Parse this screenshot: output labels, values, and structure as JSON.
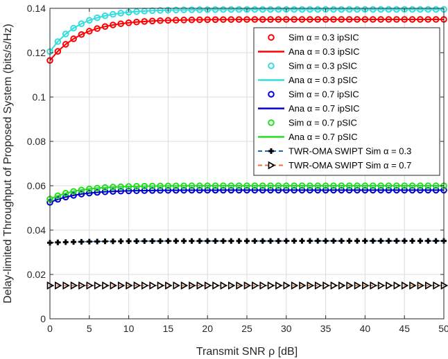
{
  "chart_data": {
    "type": "line",
    "xlabel": "Transmit SNR ρ [dB]",
    "ylabel": "Delay-limited Throughput of Proposed System (bits/s/Hz)",
    "xlim": [
      0,
      50
    ],
    "ylim": [
      0,
      0.14
    ],
    "xticks": [
      "0",
      "5",
      "10",
      "15",
      "20",
      "25",
      "30",
      "35",
      "40",
      "45",
      "50"
    ],
    "yticks": [
      "0",
      "0.02",
      "0.04",
      "0.06",
      "0.08",
      "0.1",
      "0.12",
      "0.14"
    ],
    "grid": true,
    "legend_position": "top-right",
    "x_step": 1,
    "series": [
      {
        "name": "Sim α = 0.3 ipSIC",
        "kind": "marker",
        "marker": "circle",
        "color": "#ff0000",
        "model": {
          "start": 0.1165,
          "end": 0.135,
          "tau": 4.0
        }
      },
      {
        "name": "Ana α = 0.3 ipSIC",
        "kind": "line",
        "color": "#ff0000",
        "model": {
          "start": 0.1165,
          "end": 0.135,
          "tau": 4.0
        }
      },
      {
        "name": "Sim α = 0.3 pSIC",
        "kind": "marker",
        "marker": "circle",
        "color": "#33dddd",
        "model": {
          "start": 0.1205,
          "end": 0.1395,
          "tau": 3.7
        }
      },
      {
        "name": "Ana α = 0.3 pSIC",
        "kind": "line",
        "color": "#33dddd",
        "model": {
          "start": 0.1205,
          "end": 0.1395,
          "tau": 3.7
        }
      },
      {
        "name": "Sim α = 0.7 ipSIC",
        "kind": "marker",
        "marker": "circle",
        "color": "#0000cc",
        "model": {
          "start": 0.0525,
          "end": 0.058,
          "tau": 3.5
        }
      },
      {
        "name": "Ana α = 0.7 ipSIC",
        "kind": "line",
        "color": "#0000cc",
        "model": {
          "start": 0.0525,
          "end": 0.058,
          "tau": 3.5
        }
      },
      {
        "name": "Sim α = 0.7 pSIC",
        "kind": "marker",
        "marker": "circle",
        "color": "#22dd22",
        "model": {
          "start": 0.054,
          "end": 0.06,
          "tau": 3.5
        }
      },
      {
        "name": "Ana α = 0.7 pSIC",
        "kind": "line",
        "color": "#22dd22",
        "model": {
          "start": 0.054,
          "end": 0.06,
          "tau": 3.5
        }
      },
      {
        "name": "TWR-OMA SWIPT Sim α = 0.3",
        "kind": "dashed-marker",
        "marker": "plus",
        "color": "#000000",
        "line_color": "#1a66b3",
        "model": {
          "start": 0.0343,
          "end": 0.0351,
          "tau": 5.0
        }
      },
      {
        "name": "TWR-OMA SWIPT Sim α = 0.7",
        "kind": "dashed-marker",
        "marker": "triangle-right",
        "color": "#000000",
        "line_color": "#e8733a",
        "model": {
          "start": 0.015,
          "end": 0.015,
          "tau": 5.0
        }
      }
    ]
  }
}
